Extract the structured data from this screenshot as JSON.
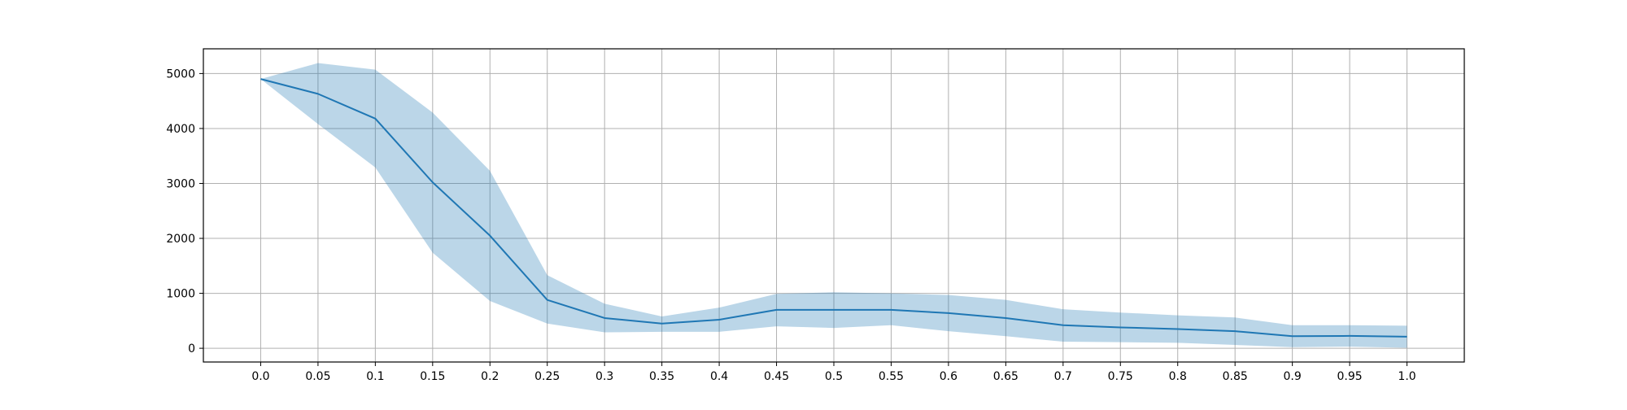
{
  "chart_data": {
    "type": "line",
    "title": "",
    "xlabel": "",
    "ylabel": "",
    "grid": true,
    "x": [
      0.0,
      0.05,
      0.1,
      0.15,
      0.2,
      0.25,
      0.3,
      0.35,
      0.4,
      0.45,
      0.5,
      0.55,
      0.6,
      0.65,
      0.7,
      0.75,
      0.8,
      0.85,
      0.9,
      0.95,
      1.0
    ],
    "x_tick_labels": [
      "0.0",
      "0.05",
      "0.1",
      "0.15",
      "0.2",
      "0.25",
      "0.3",
      "0.35",
      "0.4",
      "0.45",
      "0.5",
      "0.55",
      "0.6",
      "0.65",
      "0.7",
      "0.75",
      "0.8",
      "0.85",
      "0.9",
      "0.95",
      "1.0"
    ],
    "y_ticks": [
      0,
      1000,
      2000,
      3000,
      4000,
      5000
    ],
    "y_tick_labels": [
      "0",
      "1000",
      "2000",
      "3000",
      "4000",
      "5000"
    ],
    "xlim": [
      -0.05,
      1.05
    ],
    "ylim": [
      -250,
      5450
    ],
    "series": [
      {
        "color": "#1f77b4",
        "band_color": "#1f77b4",
        "band_opacity": 0.3,
        "values": [
          4900,
          4630,
          4180,
          3020,
          2050,
          880,
          550,
          450,
          520,
          700,
          700,
          700,
          640,
          550,
          420,
          380,
          350,
          310,
          220,
          225,
          210
        ],
        "upper": [
          4900,
          5190,
          5070,
          4290,
          3230,
          1330,
          810,
          580,
          740,
          990,
          1020,
          1000,
          970,
          880,
          710,
          650,
          600,
          560,
          420,
          420,
          410
        ],
        "lower": [
          4900,
          4080,
          3290,
          1740,
          860,
          450,
          290,
          300,
          300,
          400,
          370,
          420,
          310,
          220,
          120,
          110,
          100,
          60,
          20,
          30,
          10
        ]
      }
    ]
  }
}
